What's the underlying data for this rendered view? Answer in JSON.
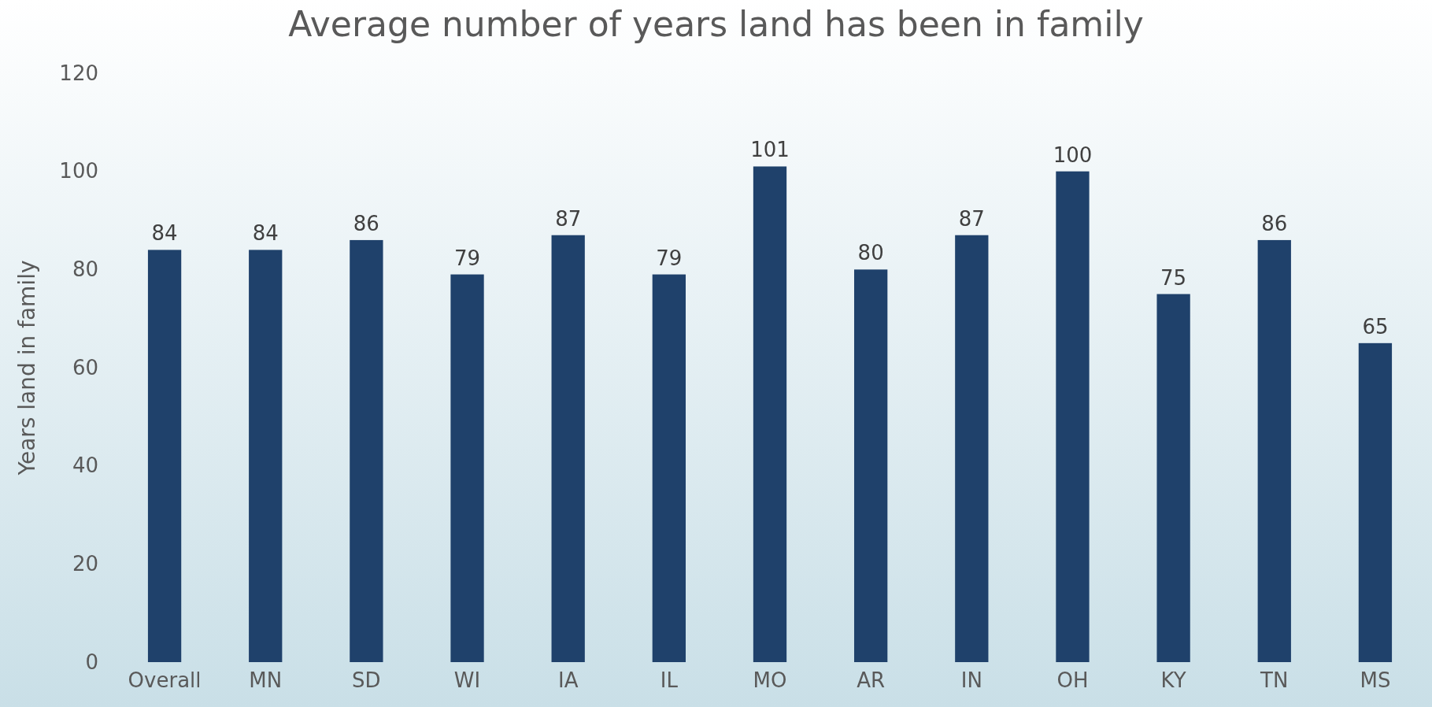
{
  "chart_data": {
    "type": "bar",
    "title": "Average number of years land has been in family",
    "ylabel": "Years land in family",
    "categories": [
      "Overall",
      "MN",
      "SD",
      "WI",
      "IA",
      "IL",
      "MO",
      "AR",
      "IN",
      "OH",
      "KY",
      "TN",
      "MS"
    ],
    "values": [
      84,
      84,
      86,
      79,
      87,
      79,
      101,
      80,
      87,
      100,
      75,
      86,
      65
    ],
    "color": "#1f416b",
    "ylim": [
      0,
      120
    ],
    "yticks": [
      0,
      20,
      40,
      60,
      80,
      100,
      120
    ],
    "data_labels": true
  }
}
